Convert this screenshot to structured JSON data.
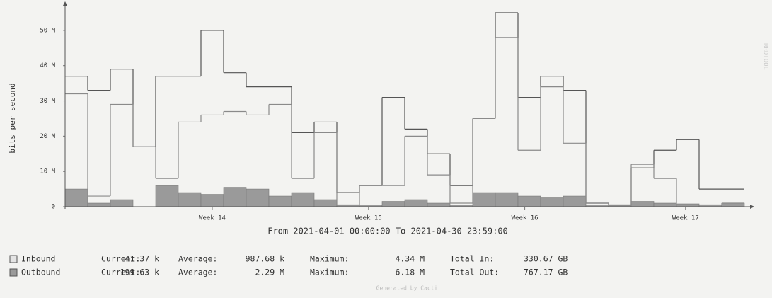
{
  "chart_data": {
    "type": "step",
    "y_label": "bits per second",
    "x_label": "From 2021-04-01 00:00:00 To 2021-04-30 23:59:00",
    "categories": [
      null,
      null,
      null,
      null,
      null,
      null,
      null,
      null,
      null,
      null,
      null,
      null,
      null,
      null,
      null,
      null,
      null,
      null,
      null,
      null,
      null,
      null,
      null,
      null,
      null,
      null,
      null,
      null,
      null,
      null
    ],
    "xticks": [
      {
        "value": 6.5,
        "label": "Week 14"
      },
      {
        "value": 13.4,
        "label": "Week 15"
      },
      {
        "value": 20.3,
        "label": "Week 16"
      },
      {
        "value": 27.4,
        "label": "Week 17"
      }
    ],
    "ylim": [
      0,
      57000000
    ],
    "yticks": [
      0,
      {
        "value": 10000000,
        "label": "10 M"
      },
      {
        "value": 20000000,
        "label": "20 M"
      },
      {
        "value": 30000000,
        "label": "30 M"
      },
      {
        "value": 40000000,
        "label": "40 M"
      },
      {
        "value": 50000000,
        "label": "50 M"
      }
    ],
    "grid": false,
    "series": [
      {
        "name": "Inbound",
        "color": "#e4e4e4",
        "style": "line",
        "values": [
          37000000,
          33000000,
          39000000,
          17000000,
          37000000,
          37000000,
          50000000,
          38000000,
          34000000,
          34000000,
          21000000,
          24000000,
          4000000,
          6000000,
          31000000,
          22000000,
          15000000,
          6000000,
          25000000,
          55000000,
          31000000,
          37000000,
          33000000,
          1000000,
          500000,
          11000000,
          16000000,
          19000000,
          5000000,
          5000000
        ]
      },
      {
        "name": "Outbound",
        "color": "#9a9a9a",
        "style": "area",
        "values": [
          5000000,
          1000000,
          2000000,
          0,
          6000000,
          4000000,
          3500000,
          5500000,
          5000000,
          3000000,
          4000000,
          2000000,
          300000,
          500000,
          1500000,
          2000000,
          1000000,
          300000,
          4000000,
          4000000,
          3000000,
          2500000,
          3000000,
          500000,
          300000,
          1500000,
          1000000,
          800000,
          500000,
          1000000
        ]
      },
      {
        "color": "#8a8a8a",
        "style": "line",
        "values": [
          32000000,
          3000000,
          29000000,
          17000000,
          8000000,
          24000000,
          26000000,
          27000000,
          26000000,
          29000000,
          8000000,
          21000000,
          500000,
          6000000,
          6000000,
          20000000,
          9000000,
          1000000,
          25000000,
          48000000,
          16000000,
          34000000,
          18000000,
          1000000,
          300000,
          12000000,
          8000000,
          500000,
          500000,
          1000000
        ]
      }
    ],
    "legend": {
      "rows": [
        {
          "name": "Inbound",
          "current_label": "Current:",
          "current": "41.37 k",
          "average_label": "Average:",
          "average": "987.68 k",
          "maximum_label": "Maximum:",
          "maximum": "4.34 M",
          "total_label": "Total In:",
          "total": "330.67 GB"
        },
        {
          "name": "Outbound",
          "current_label": "Current:",
          "current": "199.63 k",
          "average_label": "Average:",
          "average": "2.29 M",
          "maximum_label": "Maximum:",
          "maximum": "6.18 M",
          "total_label": "Total Out:",
          "total": "767.17 GB"
        }
      ]
    },
    "footer": "Generated by Cacti",
    "watermark": "RRDTOOL"
  }
}
